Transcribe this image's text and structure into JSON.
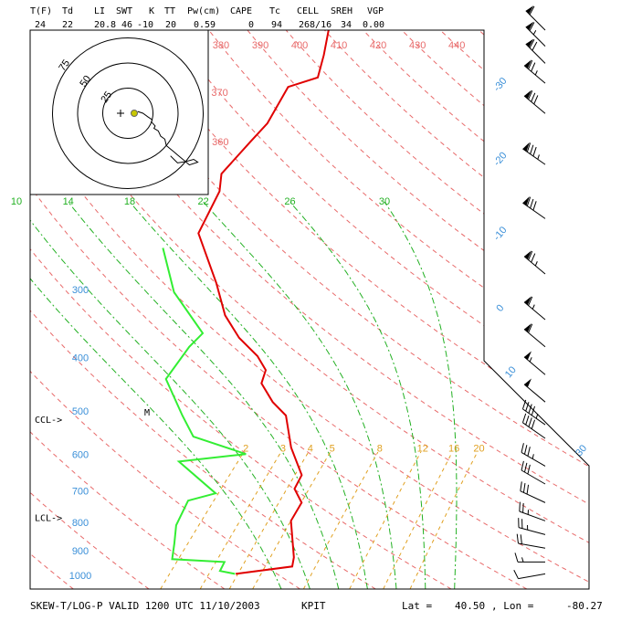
{
  "header": {
    "labels": [
      "T(F)",
      "Td",
      "LI",
      "SWT",
      "K",
      "TT",
      "Pw(cm)",
      "CAPE",
      "Tc",
      "CELL",
      "SREH",
      "VGP"
    ],
    "values": [
      "24",
      "22",
      "20.8",
      "46",
      "-10",
      "20",
      "0.59",
      "0",
      "94",
      "268/16",
      "34",
      "0.00"
    ]
  },
  "footer": {
    "title": "SKEW-T/LOG-P VALID 1200 UTC 11/10/2003",
    "station": "KPIT",
    "lat_label": "Lat =",
    "lat": "40.50",
    "lon_label": ", Lon =",
    "lon": "-80.27"
  },
  "chart_data": {
    "type": "skewt",
    "log_y": true,
    "ylim": [
      1050,
      100
    ],
    "xlim": [
      -27,
      48
    ],
    "isobars": [
      200,
      300,
      400,
      500,
      600,
      700,
      800,
      900,
      1000
    ],
    "yticks": [
      300,
      400,
      500,
      600,
      700,
      800,
      900,
      1000
    ],
    "isotherms": [
      -110,
      -100,
      -90,
      -80,
      -70,
      -60,
      -50,
      -40,
      -30,
      -20,
      -10,
      0,
      10,
      20,
      30,
      40
    ],
    "isotherm_labels": [
      -30,
      -20,
      -10,
      0,
      10,
      30
    ],
    "dry_adiabats": [
      250,
      260,
      270,
      280,
      290,
      300,
      310,
      320,
      330,
      340,
      350,
      360,
      370,
      380,
      390,
      400,
      410,
      420,
      430,
      440,
      450
    ],
    "dry_adiabat_labels": [
      370,
      380,
      390,
      400,
      410,
      420,
      430,
      440,
      360
    ],
    "moist_adiabats": [
      6,
      10,
      14,
      18,
      22,
      26,
      30
    ],
    "mixing_ratios": [
      4,
      2,
      3,
      5,
      8,
      12,
      16,
      20
    ],
    "series": [
      {
        "color": "#e00000",
        "pressure": [
          985,
          955,
          919,
          788,
          730,
          689,
          650,
          579,
          506,
          478,
          442,
          418,
          394,
          365,
          332,
          290,
          235,
          197,
          183,
          160,
          148,
          127,
          122,
          111,
          100
        ],
        "values": [
          0.1,
          6.7,
          5.7,
          0.4,
          -0.6,
          -3.4,
          -4.3,
          -9.4,
          -14.4,
          -18.0,
          -22.0,
          -23.2,
          -26.2,
          -31.1,
          -36.0,
          -41.5,
          -50.6,
          -53.4,
          -55.5,
          -55.9,
          -56.1,
          -58.2,
          -55.5,
          -57.7,
          -60.4
        ]
      },
      {
        "color": "#33ee33",
        "pressure": [
          985,
          973,
          937,
          926,
          867,
          803,
          724,
          702,
          614,
          595,
          553,
          506,
          434,
          379,
          358,
          301,
          250
        ],
        "values": [
          0.0,
          -2.4,
          -3.0,
          -10.4,
          -12.2,
          -14.4,
          -16.1,
          -13.4,
          -22.6,
          -14.6,
          -24.0,
          -28.3,
          -35.4,
          -36.6,
          -36.6,
          -46.0,
          -53.4
        ]
      }
    ],
    "winds": {
      "pressure": [
        985,
        937,
        884,
        835,
        788,
        730,
        675,
        626,
        557,
        526,
        478,
        426,
        379,
        338,
        279,
        221,
        176,
        142,
        125,
        115,
        107,
        100
      ],
      "direction": [
        260,
        270,
        280,
        285,
        290,
        295,
        300,
        300,
        305,
        305,
        310,
        310,
        310,
        310,
        310,
        305,
        305,
        310,
        310,
        315,
        315,
        315
      ],
      "speed": [
        10,
        15,
        20,
        25,
        25,
        30,
        30,
        35,
        40,
        45,
        50,
        55,
        60,
        65,
        75,
        80,
        85,
        80,
        75,
        70,
        65,
        60
      ]
    },
    "hodograph": {
      "rings": [
        25,
        50,
        75
      ]
    },
    "annotations": [
      {
        "text": "CCL->",
        "pressure": 516
      },
      {
        "text": "LCL->",
        "pressure": 779
      },
      {
        "text": "M",
        "pressure": 500
      }
    ]
  }
}
